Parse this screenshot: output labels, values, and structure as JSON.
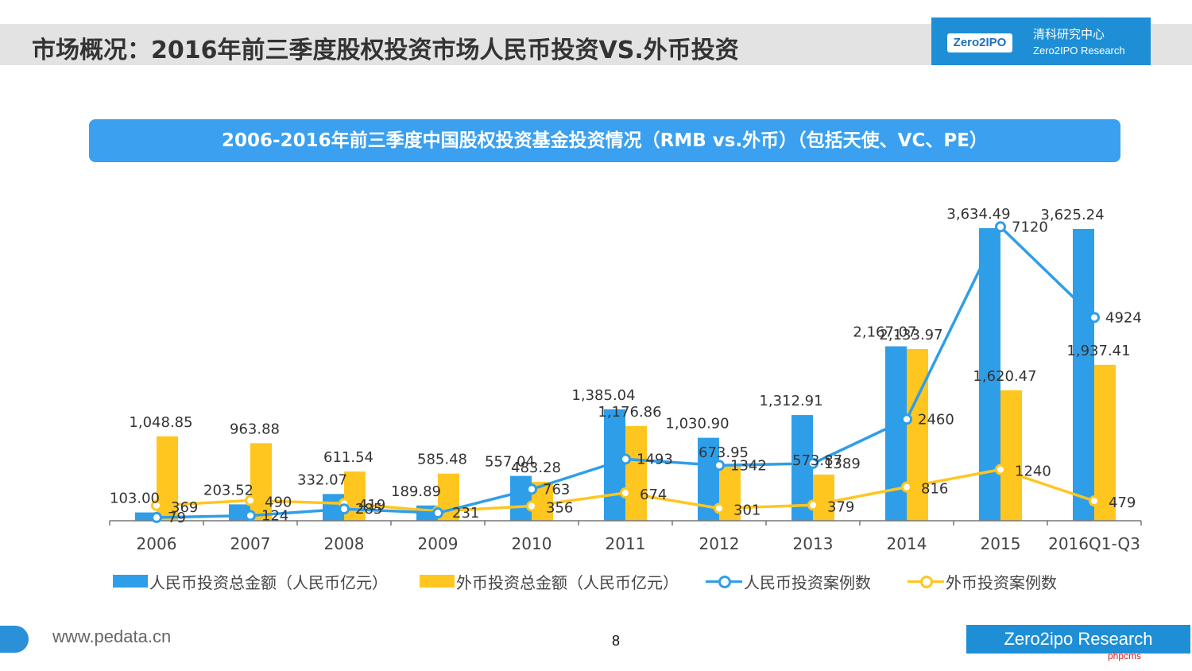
{
  "page": {
    "title": "市场概况：2016年前三季度股权投资市场人民币投资VS.外币投资",
    "logo": {
      "badge": "Zero2IPO",
      "cn": "清科研究中心",
      "en": "Zero2IPO Research"
    },
    "footer": {
      "url": "www.pedata.cn",
      "page_number": "8",
      "brand": "Zero2ipo Research",
      "watermark": "phpcms"
    }
  },
  "colors": {
    "rmb": "#2f9ee9",
    "foreign": "#ffc61f",
    "banner": "#3aa0ef",
    "brand": "#1e8fd6"
  },
  "chart_data": {
    "type": "bar",
    "title": "2006-2016年前三季度中国股权投资基金投资情况（RMB vs.外币）（包括天使、VC、PE）",
    "categories": [
      "2006",
      "2007",
      "2008",
      "2009",
      "2010",
      "2011",
      "2012",
      "2013",
      "2014",
      "2015",
      "2016Q1-Q3"
    ],
    "series": [
      {
        "name": "人民币投资总金额（人民币亿元）",
        "kind": "bar",
        "color": "#2f9ee9",
        "values": [
          103.0,
          203.52,
          332.07,
          189.89,
          557.04,
          1385.04,
          1030.9,
          1312.91,
          2167.07,
          3634.49,
          3625.24
        ],
        "labels": [
          "103.00",
          "203.52",
          "332.07",
          "189.89",
          "557.04",
          "1,385.04",
          "1,030.90",
          "1,312.91",
          "2,167.07",
          "3,634.49",
          "3,625.24"
        ]
      },
      {
        "name": "外币投资总金额（人民币亿元）",
        "kind": "bar",
        "color": "#ffc61f",
        "values": [
          1048.85,
          963.88,
          611.54,
          585.48,
          483.28,
          1176.86,
          673.95,
          573.87,
          2133.97,
          1620.47,
          1937.41
        ],
        "labels": [
          "1,048.85",
          "963.88",
          "611.54",
          "585.48",
          "483.28",
          "1,176.86",
          "673.95",
          "573.87",
          "2,133.97",
          "1,620.47",
          "1,937.41"
        ]
      },
      {
        "name": "人民币投资案例数",
        "kind": "line",
        "color": "#2f9ee9",
        "values": [
          79,
          124,
          285,
          189,
          763,
          1493,
          1342,
          1389,
          2460,
          7120,
          4924
        ],
        "labels": [
          "79",
          "124",
          "285",
          "",
          "763",
          "1493",
          "1342",
          "1389",
          "2460",
          "7120",
          "4924"
        ]
      },
      {
        "name": "外币投资案例数",
        "kind": "line",
        "color": "#ffc61f",
        "values": [
          369,
          490,
          419,
          231,
          356,
          674,
          301,
          379,
          816,
          1240,
          479
        ],
        "labels": [
          "369",
          "490",
          "419",
          "231",
          "356",
          "674",
          "301",
          "379",
          "816",
          "1240",
          "479"
        ]
      }
    ],
    "ylim_amount": [
      0,
      4000
    ],
    "ylim_count": [
      0,
      7800
    ],
    "grid": false,
    "legend": "bottom"
  }
}
